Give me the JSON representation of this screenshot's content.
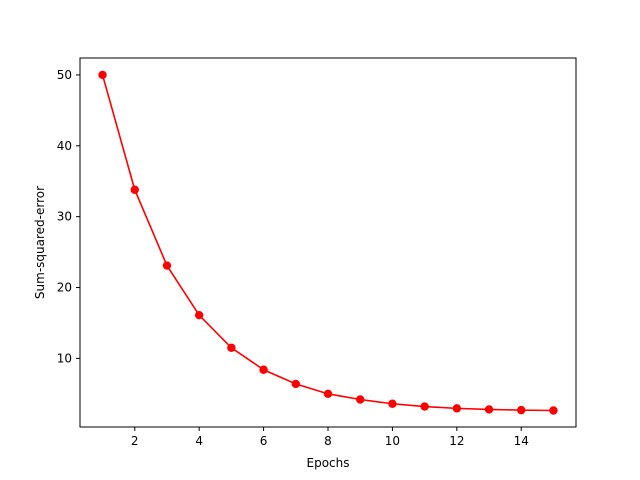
{
  "chart_data": {
    "type": "line",
    "title": "",
    "xlabel": "Epochs",
    "ylabel": "Sum-squared-error",
    "xlim": [
      0.3,
      15.7
    ],
    "ylim": [
      0.32,
      52.39
    ],
    "xticks": [
      2,
      4,
      6,
      8,
      10,
      12,
      14
    ],
    "yticks": [
      10,
      20,
      30,
      40,
      50
    ],
    "grid": false,
    "legend": "none",
    "series": [
      {
        "color": "#ff0000",
        "marker": "circle",
        "x": [
          1,
          2,
          3,
          4,
          5,
          6,
          7,
          8,
          9,
          10,
          11,
          12,
          13,
          14,
          15
        ],
        "y": [
          50.0,
          33.8,
          23.1,
          16.1,
          11.5,
          8.4,
          6.4,
          5.0,
          4.2,
          3.6,
          3.2,
          2.95,
          2.8,
          2.7,
          2.65
        ]
      }
    ]
  }
}
